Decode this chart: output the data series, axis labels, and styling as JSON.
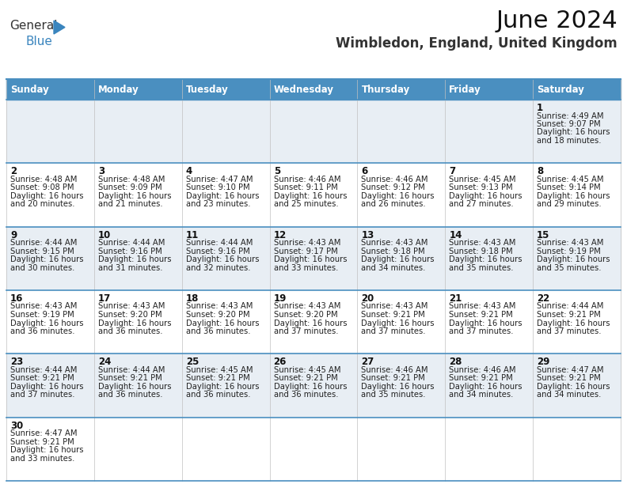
{
  "title": "June 2024",
  "subtitle": "Wimbledon, England, United Kingdom",
  "days_of_week": [
    "Sunday",
    "Monday",
    "Tuesday",
    "Wednesday",
    "Thursday",
    "Friday",
    "Saturday"
  ],
  "header_bg": "#4a8fc0",
  "header_text": "#ffffff",
  "bg_color": "#ffffff",
  "row0_color": "#e8eef4",
  "row1_color": "#ffffff",
  "grid_line_color": "#4a8fc0",
  "cell_text_color": "#222222",
  "day_num_color": "#111111",
  "calendar_data": [
    [
      null,
      null,
      null,
      null,
      null,
      null,
      {
        "day": "1",
        "sunrise": "4:49 AM",
        "sunset": "9:07 PM",
        "dl1": "16 hours",
        "dl2": "and 18 minutes."
      }
    ],
    [
      {
        "day": "2",
        "sunrise": "4:48 AM",
        "sunset": "9:08 PM",
        "dl1": "16 hours",
        "dl2": "and 20 minutes."
      },
      {
        "day": "3",
        "sunrise": "4:48 AM",
        "sunset": "9:09 PM",
        "dl1": "16 hours",
        "dl2": "and 21 minutes."
      },
      {
        "day": "4",
        "sunrise": "4:47 AM",
        "sunset": "9:10 PM",
        "dl1": "16 hours",
        "dl2": "and 23 minutes."
      },
      {
        "day": "5",
        "sunrise": "4:46 AM",
        "sunset": "9:11 PM",
        "dl1": "16 hours",
        "dl2": "and 25 minutes."
      },
      {
        "day": "6",
        "sunrise": "4:46 AM",
        "sunset": "9:12 PM",
        "dl1": "16 hours",
        "dl2": "and 26 minutes."
      },
      {
        "day": "7",
        "sunrise": "4:45 AM",
        "sunset": "9:13 PM",
        "dl1": "16 hours",
        "dl2": "and 27 minutes."
      },
      {
        "day": "8",
        "sunrise": "4:45 AM",
        "sunset": "9:14 PM",
        "dl1": "16 hours",
        "dl2": "and 29 minutes."
      }
    ],
    [
      {
        "day": "9",
        "sunrise": "4:44 AM",
        "sunset": "9:15 PM",
        "dl1": "16 hours",
        "dl2": "and 30 minutes."
      },
      {
        "day": "10",
        "sunrise": "4:44 AM",
        "sunset": "9:16 PM",
        "dl1": "16 hours",
        "dl2": "and 31 minutes."
      },
      {
        "day": "11",
        "sunrise": "4:44 AM",
        "sunset": "9:16 PM",
        "dl1": "16 hours",
        "dl2": "and 32 minutes."
      },
      {
        "day": "12",
        "sunrise": "4:43 AM",
        "sunset": "9:17 PM",
        "dl1": "16 hours",
        "dl2": "and 33 minutes."
      },
      {
        "day": "13",
        "sunrise": "4:43 AM",
        "sunset": "9:18 PM",
        "dl1": "16 hours",
        "dl2": "and 34 minutes."
      },
      {
        "day": "14",
        "sunrise": "4:43 AM",
        "sunset": "9:18 PM",
        "dl1": "16 hours",
        "dl2": "and 35 minutes."
      },
      {
        "day": "15",
        "sunrise": "4:43 AM",
        "sunset": "9:19 PM",
        "dl1": "16 hours",
        "dl2": "and 35 minutes."
      }
    ],
    [
      {
        "day": "16",
        "sunrise": "4:43 AM",
        "sunset": "9:19 PM",
        "dl1": "16 hours",
        "dl2": "and 36 minutes."
      },
      {
        "day": "17",
        "sunrise": "4:43 AM",
        "sunset": "9:20 PM",
        "dl1": "16 hours",
        "dl2": "and 36 minutes."
      },
      {
        "day": "18",
        "sunrise": "4:43 AM",
        "sunset": "9:20 PM",
        "dl1": "16 hours",
        "dl2": "and 36 minutes."
      },
      {
        "day": "19",
        "sunrise": "4:43 AM",
        "sunset": "9:20 PM",
        "dl1": "16 hours",
        "dl2": "and 37 minutes."
      },
      {
        "day": "20",
        "sunrise": "4:43 AM",
        "sunset": "9:21 PM",
        "dl1": "16 hours",
        "dl2": "and 37 minutes."
      },
      {
        "day": "21",
        "sunrise": "4:43 AM",
        "sunset": "9:21 PM",
        "dl1": "16 hours",
        "dl2": "and 37 minutes."
      },
      {
        "day": "22",
        "sunrise": "4:44 AM",
        "sunset": "9:21 PM",
        "dl1": "16 hours",
        "dl2": "and 37 minutes."
      }
    ],
    [
      {
        "day": "23",
        "sunrise": "4:44 AM",
        "sunset": "9:21 PM",
        "dl1": "16 hours",
        "dl2": "and 37 minutes."
      },
      {
        "day": "24",
        "sunrise": "4:44 AM",
        "sunset": "9:21 PM",
        "dl1": "16 hours",
        "dl2": "and 36 minutes."
      },
      {
        "day": "25",
        "sunrise": "4:45 AM",
        "sunset": "9:21 PM",
        "dl1": "16 hours",
        "dl2": "and 36 minutes."
      },
      {
        "day": "26",
        "sunrise": "4:45 AM",
        "sunset": "9:21 PM",
        "dl1": "16 hours",
        "dl2": "and 36 minutes."
      },
      {
        "day": "27",
        "sunrise": "4:46 AM",
        "sunset": "9:21 PM",
        "dl1": "16 hours",
        "dl2": "and 35 minutes."
      },
      {
        "day": "28",
        "sunrise": "4:46 AM",
        "sunset": "9:21 PM",
        "dl1": "16 hours",
        "dl2": "and 34 minutes."
      },
      {
        "day": "29",
        "sunrise": "4:47 AM",
        "sunset": "9:21 PM",
        "dl1": "16 hours",
        "dl2": "and 34 minutes."
      }
    ],
    [
      {
        "day": "30",
        "sunrise": "4:47 AM",
        "sunset": "9:21 PM",
        "dl1": "16 hours",
        "dl2": "and 33 minutes."
      },
      null,
      null,
      null,
      null,
      null,
      null
    ]
  ]
}
